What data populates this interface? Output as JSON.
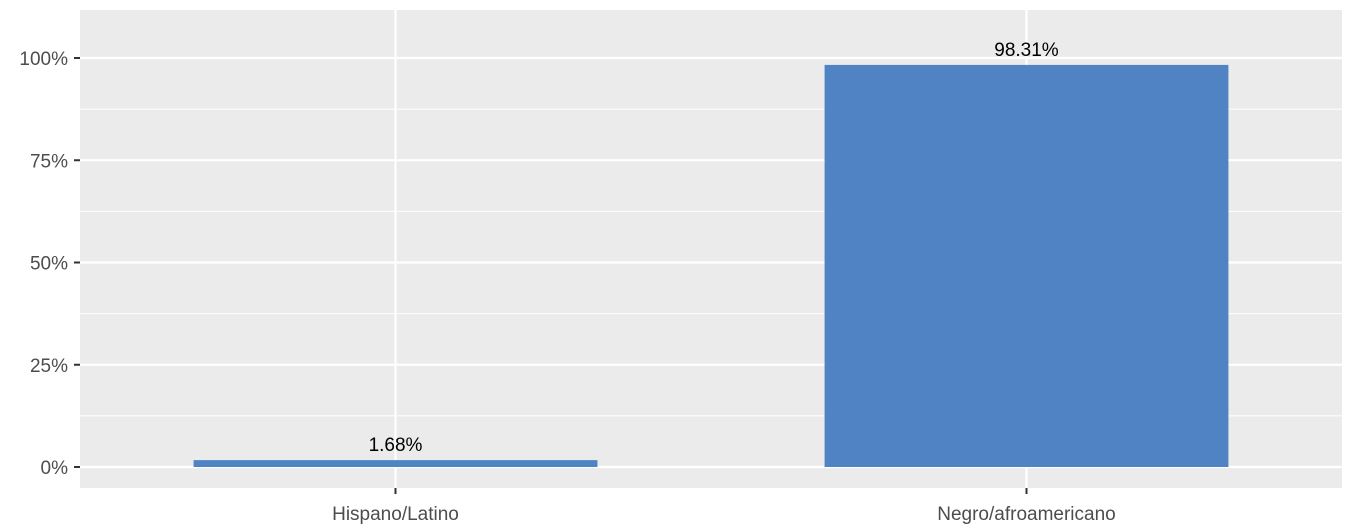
{
  "chart_data": {
    "type": "bar",
    "title": "",
    "xlabel": "",
    "ylabel": "",
    "categories": [
      "Hispano/Latino",
      "Negro/afroamericano"
    ],
    "values": [
      1.68,
      98.31
    ],
    "data_labels": [
      "1.68%",
      "98.31%"
    ],
    "ylim": [
      0,
      110
    ],
    "yticks": [
      0,
      25,
      50,
      75,
      100
    ],
    "ytick_labels": [
      "0%",
      "25%",
      "50%",
      "75%",
      "100%"
    ],
    "grid": true,
    "legend": "none",
    "colors": {
      "bar": "#4f83c3",
      "panel": "#ebebeb",
      "grid_major": "#ffffff",
      "tick_text": "#4d4d4d"
    }
  }
}
